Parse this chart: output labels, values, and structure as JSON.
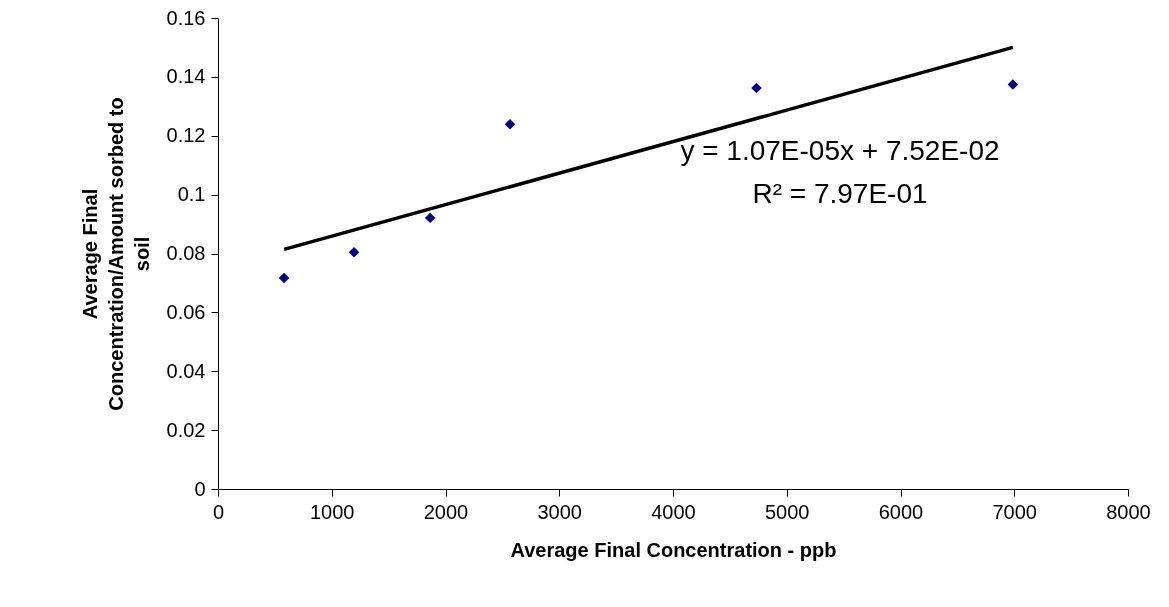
{
  "chart_data": {
    "type": "scatter",
    "xlabel": "Average Final Concentration - ppb",
    "ylabel": "Average Final Concentration/Amount sorbed to soil",
    "x": [
      581,
      1196,
      1865,
      2567,
      4734,
      6988
    ],
    "series": [
      {
        "color": "#000080",
        "marker": "diamond",
        "values": [
          0.0717,
          0.0804,
          0.0921,
          0.1239,
          0.1362,
          0.1374
        ]
      },
      {
        "type": "line",
        "color": "#000000",
        "x": [
          581,
          6988
        ],
        "values": [
          0.0814,
          0.15
        ]
      }
    ],
    "annotations": [
      "y = 1.07E-05x + 7.52E-02",
      "R² = 7.97E-01"
    ],
    "xlim": [
      0,
      8000
    ],
    "xticks": [
      0,
      1000,
      2000,
      3000,
      4000,
      5000,
      6000,
      7000,
      8000
    ],
    "ylim": [
      0,
      0.16
    ],
    "yticks": [
      0,
      0.02,
      0.04,
      0.06,
      0.08,
      0.1,
      0.12,
      0.14,
      0.16
    ],
    "grid": false
  }
}
